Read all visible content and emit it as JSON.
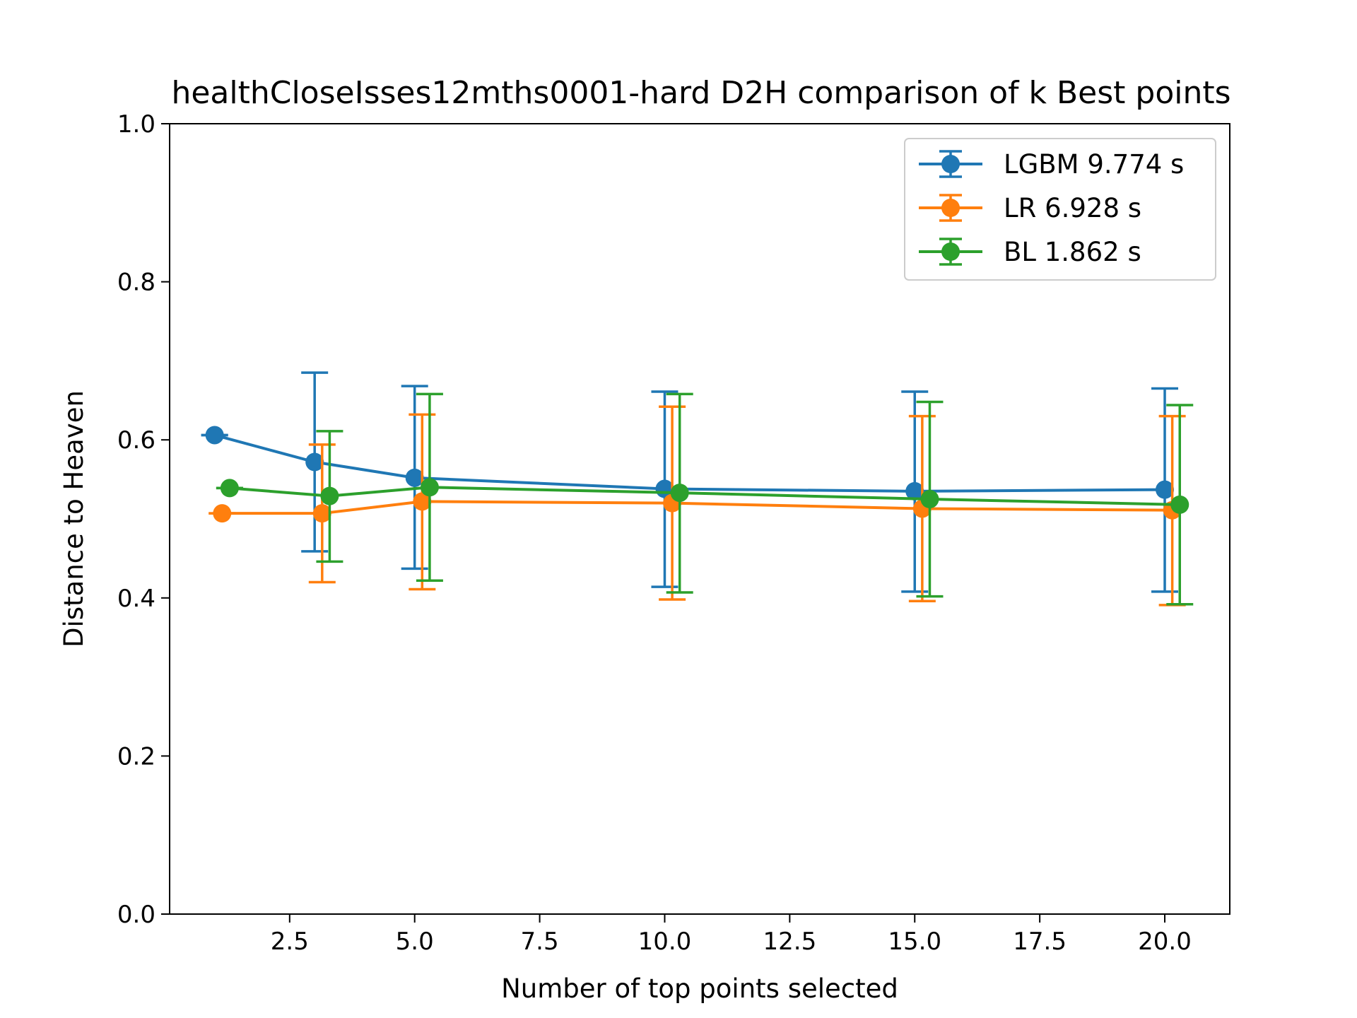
{
  "chart_data": {
    "type": "line",
    "title": "healthCloseIsses12mths0001-hard D2H comparison of k Best points",
    "xlabel": "Number of top points selected",
    "ylabel": "Distance to Heaven",
    "xlim": [
      0.1,
      21.3
    ],
    "ylim": [
      0.0,
      1.0
    ],
    "xticks": [
      2.5,
      5.0,
      7.5,
      10.0,
      12.5,
      15.0,
      17.5,
      20.0
    ],
    "xtick_labels": [
      "2.5",
      "5.0",
      "7.5",
      "10.0",
      "12.5",
      "15.0",
      "17.5",
      "20.0"
    ],
    "yticks": [
      0.0,
      0.2,
      0.4,
      0.6,
      0.8,
      1.0
    ],
    "ytick_labels": [
      "0.0",
      "0.2",
      "0.4",
      "0.6",
      "0.8",
      "1.0"
    ],
    "grid": false,
    "legend_position": "top-right",
    "series": [
      {
        "name": "LGBM 9.774 s",
        "color": "#1f77b4",
        "x": [
          1.0,
          3.0,
          5.0,
          10.0,
          15.0,
          20.0
        ],
        "y": [
          0.606,
          0.572,
          0.552,
          0.538,
          0.535,
          0.537
        ],
        "err_low": [
          0.606,
          0.459,
          0.437,
          0.414,
          0.408,
          0.408
        ],
        "err_high": [
          0.606,
          0.685,
          0.668,
          0.661,
          0.661,
          0.665
        ]
      },
      {
        "name": "LR 6.928 s",
        "color": "#ff7f0e",
        "x": [
          1.15,
          3.15,
          5.15,
          10.15,
          15.15,
          20.15
        ],
        "y": [
          0.507,
          0.507,
          0.522,
          0.52,
          0.513,
          0.511
        ],
        "err_low": [
          0.507,
          0.42,
          0.411,
          0.398,
          0.396,
          0.391
        ],
        "err_high": [
          0.507,
          0.594,
          0.632,
          0.642,
          0.63,
          0.63
        ]
      },
      {
        "name": "BL 1.862 s",
        "color": "#2ca02c",
        "x": [
          1.3,
          3.3,
          5.3,
          10.3,
          15.3,
          20.3
        ],
        "y": [
          0.539,
          0.529,
          0.54,
          0.533,
          0.525,
          0.518
        ],
        "err_low": [
          0.539,
          0.446,
          0.422,
          0.407,
          0.402,
          0.392
        ],
        "err_high": [
          0.539,
          0.611,
          0.658,
          0.658,
          0.648,
          0.644
        ]
      }
    ]
  }
}
